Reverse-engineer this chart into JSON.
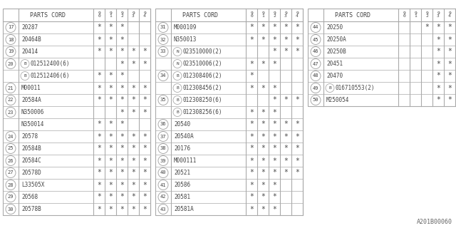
{
  "panels": [
    {
      "rows": [
        {
          "num": "17",
          "part": "20287",
          "prefix": null,
          "stars": [
            1,
            1,
            1,
            0,
            0
          ]
        },
        {
          "num": "18",
          "part": "20464B",
          "prefix": null,
          "stars": [
            1,
            1,
            1,
            0,
            0
          ]
        },
        {
          "num": "19",
          "part": "20414",
          "prefix": null,
          "stars": [
            1,
            1,
            1,
            1,
            1
          ]
        },
        {
          "num": "20",
          "part": "012512400(6)",
          "prefix": "B",
          "stars": [
            0,
            0,
            1,
            1,
            1
          ]
        },
        {
          "num": "",
          "part": "012512406(6)",
          "prefix": "B",
          "stars": [
            1,
            1,
            1,
            0,
            0
          ]
        },
        {
          "num": "21",
          "part": "M00011",
          "prefix": null,
          "stars": [
            1,
            1,
            1,
            1,
            1
          ]
        },
        {
          "num": "22",
          "part": "20584A",
          "prefix": null,
          "stars": [
            1,
            1,
            1,
            1,
            1
          ]
        },
        {
          "num": "23",
          "part": "N350006",
          "prefix": null,
          "stars": [
            0,
            0,
            1,
            1,
            1
          ]
        },
        {
          "num": "",
          "part": "N350014",
          "prefix": null,
          "stars": [
            1,
            1,
            1,
            0,
            0
          ]
        },
        {
          "num": "24",
          "part": "20578",
          "prefix": null,
          "stars": [
            1,
            1,
            1,
            1,
            1
          ]
        },
        {
          "num": "25",
          "part": "20584B",
          "prefix": null,
          "stars": [
            1,
            1,
            1,
            1,
            1
          ]
        },
        {
          "num": "26",
          "part": "20584C",
          "prefix": null,
          "stars": [
            1,
            1,
            1,
            1,
            1
          ]
        },
        {
          "num": "27",
          "part": "20578D",
          "prefix": null,
          "stars": [
            1,
            1,
            1,
            1,
            1
          ]
        },
        {
          "num": "28",
          "part": "L33505X",
          "prefix": null,
          "stars": [
            1,
            1,
            1,
            1,
            1
          ]
        },
        {
          "num": "29",
          "part": "20568",
          "prefix": null,
          "stars": [
            1,
            1,
            1,
            1,
            1
          ]
        },
        {
          "num": "30",
          "part": "20578B",
          "prefix": null,
          "stars": [
            1,
            1,
            1,
            1,
            1
          ]
        }
      ]
    },
    {
      "rows": [
        {
          "num": "31",
          "part": "M000109",
          "prefix": null,
          "stars": [
            1,
            1,
            1,
            1,
            1
          ]
        },
        {
          "num": "32",
          "part": "N350013",
          "prefix": null,
          "stars": [
            1,
            1,
            1,
            1,
            1
          ]
        },
        {
          "num": "33",
          "part": "023510000(2)",
          "prefix": "N",
          "stars": [
            0,
            0,
            1,
            1,
            1
          ]
        },
        {
          "num": "",
          "part": "023510006(2)",
          "prefix": "N",
          "stars": [
            1,
            1,
            1,
            0,
            0
          ]
        },
        {
          "num": "34",
          "part": "012308406(2)",
          "prefix": "B",
          "stars": [
            1,
            0,
            0,
            0,
            0
          ]
        },
        {
          "num": "",
          "part": "012308456(2)",
          "prefix": "B",
          "stars": [
            1,
            1,
            1,
            0,
            0
          ]
        },
        {
          "num": "35",
          "part": "012308250(6)",
          "prefix": "B",
          "stars": [
            0,
            0,
            1,
            1,
            1
          ]
        },
        {
          "num": "",
          "part": "012308256(6)",
          "prefix": "B",
          "stars": [
            1,
            1,
            1,
            0,
            0
          ]
        },
        {
          "num": "36",
          "part": "20540",
          "prefix": null,
          "stars": [
            1,
            1,
            1,
            1,
            1
          ]
        },
        {
          "num": "37",
          "part": "20540A",
          "prefix": null,
          "stars": [
            1,
            1,
            1,
            1,
            1
          ]
        },
        {
          "num": "38",
          "part": "20176",
          "prefix": null,
          "stars": [
            1,
            1,
            1,
            1,
            1
          ]
        },
        {
          "num": "39",
          "part": "M000111",
          "prefix": null,
          "stars": [
            1,
            1,
            1,
            1,
            1
          ]
        },
        {
          "num": "40",
          "part": "20521",
          "prefix": null,
          "stars": [
            1,
            1,
            1,
            1,
            1
          ]
        },
        {
          "num": "41",
          "part": "20586",
          "prefix": null,
          "stars": [
            1,
            1,
            1,
            0,
            0
          ]
        },
        {
          "num": "42",
          "part": "20581",
          "prefix": null,
          "stars": [
            1,
            1,
            1,
            0,
            0
          ]
        },
        {
          "num": "43",
          "part": "20581A",
          "prefix": null,
          "stars": [
            1,
            1,
            1,
            0,
            0
          ]
        }
      ]
    },
    {
      "rows": [
        {
          "num": "44",
          "part": "20250",
          "prefix": null,
          "stars": [
            0,
            0,
            1,
            1,
            1
          ]
        },
        {
          "num": "45",
          "part": "20250A",
          "prefix": null,
          "stars": [
            0,
            0,
            0,
            1,
            1
          ]
        },
        {
          "num": "46",
          "part": "20250B",
          "prefix": null,
          "stars": [
            0,
            0,
            0,
            1,
            1
          ]
        },
        {
          "num": "47",
          "part": "20451",
          "prefix": null,
          "stars": [
            0,
            0,
            0,
            1,
            1
          ]
        },
        {
          "num": "48",
          "part": "20470",
          "prefix": null,
          "stars": [
            0,
            0,
            0,
            1,
            1
          ]
        },
        {
          "num": "49",
          "part": "016710553(2)",
          "prefix": "B",
          "stars": [
            0,
            0,
            0,
            1,
            1
          ]
        },
        {
          "num": "50",
          "part": "M250054",
          "prefix": null,
          "stars": [
            0,
            0,
            0,
            1,
            1
          ]
        }
      ]
    }
  ],
  "watermark": "A201B00060",
  "line_color": "#aaaaaa",
  "text_color": "#444444"
}
